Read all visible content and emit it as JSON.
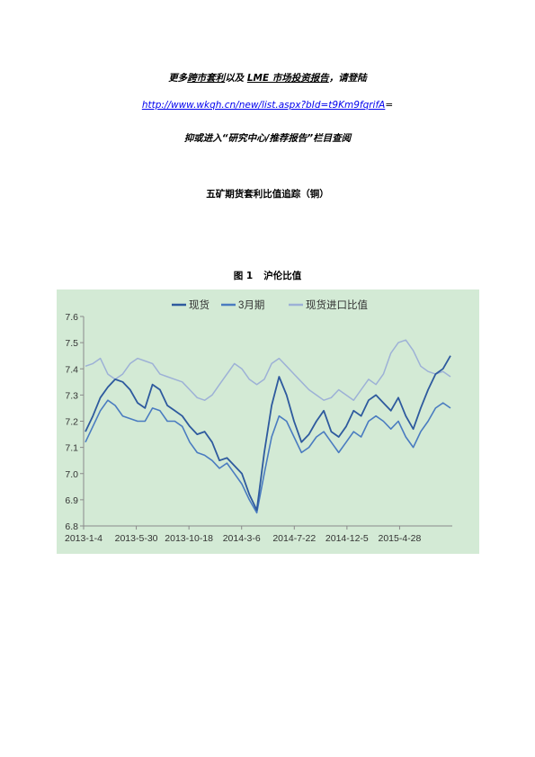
{
  "header": {
    "promo_a": "更多",
    "promo_u1": "跨市套利",
    "promo_b": "以及 ",
    "promo_u2": "LME 市场投资报告",
    "promo_c": "，请登陆",
    "link_text": "http://www.wkqh.cn/new/list.aspx?bId=t9Km9fqrifA",
    "link_suffix": "=",
    "sub_text": "抑或进入“研究中心/推荐报告”栏目查阅"
  },
  "section_title": "五矿期货套利比值追踪（铜）",
  "figure_caption": {
    "num": "图 1",
    "title": "沪伦比值"
  },
  "colors": {
    "chart_bg": "#d3ead5",
    "spot": "#2e5a9e",
    "m3": "#4a7cc0",
    "import": "#9db1d6"
  },
  "chart_data": {
    "type": "line",
    "xlabel": "",
    "ylabel": "",
    "ylim": [
      6.8,
      7.6
    ],
    "yticks": [
      6.8,
      6.9,
      7.0,
      7.1,
      7.2,
      7.3,
      7.4,
      7.5,
      7.6
    ],
    "x_tick_labels": [
      "2013-1-4",
      "2013-5-30",
      "2013-10-18",
      "2014-3-6",
      "2014-7-22",
      "2014-12-5",
      "2015-4-28"
    ],
    "grid": false,
    "legend_position": "top",
    "legend": [
      "现货",
      "3月期",
      "现货进口比值"
    ],
    "series": [
      {
        "name": "现货",
        "values": [
          7.16,
          7.22,
          7.29,
          7.33,
          7.36,
          7.35,
          7.32,
          7.27,
          7.25,
          7.34,
          7.32,
          7.26,
          7.24,
          7.22,
          7.18,
          7.15,
          7.16,
          7.12,
          7.05,
          7.06,
          7.03,
          7.0,
          6.92,
          6.86,
          7.08,
          7.26,
          7.37,
          7.3,
          7.2,
          7.12,
          7.15,
          7.2,
          7.24,
          7.16,
          7.14,
          7.18,
          7.24,
          7.22,
          7.28,
          7.3,
          7.27,
          7.24,
          7.29,
          7.22,
          7.17,
          7.25,
          7.32,
          7.38,
          7.4,
          7.45
        ]
      },
      {
        "name": "3月期",
        "values": [
          7.12,
          7.18,
          7.24,
          7.28,
          7.26,
          7.22,
          7.21,
          7.2,
          7.2,
          7.25,
          7.24,
          7.2,
          7.2,
          7.18,
          7.12,
          7.08,
          7.07,
          7.05,
          7.02,
          7.04,
          7.0,
          6.96,
          6.9,
          6.85,
          7.0,
          7.14,
          7.22,
          7.2,
          7.14,
          7.08,
          7.1,
          7.14,
          7.16,
          7.12,
          7.08,
          7.12,
          7.16,
          7.14,
          7.2,
          7.22,
          7.2,
          7.17,
          7.2,
          7.14,
          7.1,
          7.16,
          7.2,
          7.25,
          7.27,
          7.25
        ]
      },
      {
        "name": "现货进口比值",
        "values": [
          7.41,
          7.42,
          7.44,
          7.38,
          7.36,
          7.38,
          7.42,
          7.44,
          7.43,
          7.42,
          7.38,
          7.37,
          7.36,
          7.35,
          7.32,
          7.29,
          7.28,
          7.3,
          7.34,
          7.38,
          7.42,
          7.4,
          7.36,
          7.34,
          7.36,
          7.42,
          7.44,
          7.41,
          7.38,
          7.35,
          7.32,
          7.3,
          7.28,
          7.29,
          7.32,
          7.3,
          7.28,
          7.32,
          7.36,
          7.34,
          7.38,
          7.46,
          7.5,
          7.51,
          7.47,
          7.41,
          7.39,
          7.38,
          7.39,
          7.37
        ]
      }
    ]
  }
}
